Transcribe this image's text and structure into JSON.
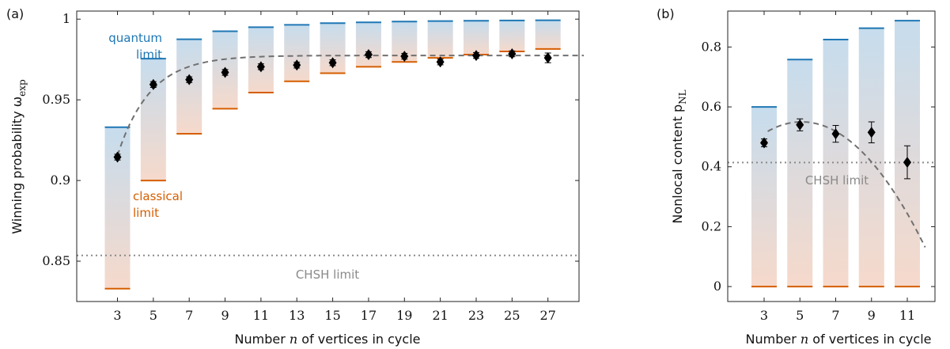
{
  "chart_data": [
    {
      "panel_label": "(a)",
      "type": "bar",
      "xlabel": "Number n of vertices in cycle",
      "ylabel": "Winning probability ω",
      "ylabel_sub": "exp",
      "ylim": [
        0.825,
        1.005
      ],
      "yticks": [
        0.85,
        0.9,
        0.95,
        1
      ],
      "ytick_labels": [
        "0.85",
        "0.9",
        "0.95",
        "1"
      ],
      "x": [
        3,
        5,
        7,
        9,
        11,
        13,
        15,
        17,
        19,
        21,
        23,
        25,
        27
      ],
      "xtick_labels": [
        "3",
        "5",
        "7",
        "9",
        "11",
        "13",
        "15",
        "17",
        "19",
        "21",
        "23",
        "25",
        "27"
      ],
      "quantum_limit": [
        0.933,
        0.9755,
        0.9875,
        0.9925,
        0.995,
        0.9965,
        0.9975,
        0.998,
        0.9985,
        0.9988,
        0.999,
        0.9992,
        0.9993
      ],
      "classical_limit": [
        0.833,
        0.9,
        0.929,
        0.9445,
        0.9545,
        0.9615,
        0.9665,
        0.9705,
        0.9735,
        0.976,
        0.978,
        0.98,
        0.9815
      ],
      "measured": [
        0.9145,
        0.9595,
        0.9625,
        0.967,
        0.9705,
        0.9715,
        0.973,
        0.978,
        0.977,
        0.9735,
        0.9775,
        0.9785,
        0.976
      ],
      "error": [
        0.0018,
        0.0018,
        0.0018,
        0.0018,
        0.0018,
        0.0018,
        0.0018,
        0.0018,
        0.0018,
        0.0018,
        0.0018,
        0.0018,
        0.003
      ],
      "fit_curve": {
        "asymptote": 0.9775,
        "amplitude": 0.062,
        "rate": 0.55,
        "x_start": 3,
        "x_end": 29
      },
      "chsh_limit": 0.8536,
      "annotations": {
        "quantum_limit_1": "quantum",
        "quantum_limit_2": "limit",
        "classical_limit_1": "classical",
        "classical_limit_2": "limit",
        "chsh": "CHSH limit"
      },
      "colors": {
        "quantum": "#1f77b4",
        "classical": "#d55e00",
        "bar_top": "#c6dced",
        "bar_bottom": "#f6d9cb",
        "fit": "#707070",
        "chsh": "#8a8a8a",
        "point": "#000000"
      }
    },
    {
      "panel_label": "(b)",
      "type": "bar",
      "xlabel": "Number n of vertices in cycle",
      "ylabel": "Nonlocal content p",
      "ylabel_sub": "NL",
      "ylim": [
        -0.05,
        0.92
      ],
      "yticks": [
        0,
        0.2,
        0.4,
        0.6,
        0.8
      ],
      "ytick_labels": [
        "0",
        "0.2",
        "0.4",
        "0.6",
        "0.8"
      ],
      "x": [
        3,
        5,
        7,
        9,
        11
      ],
      "xtick_labels": [
        "3",
        "5",
        "7",
        "9",
        "11"
      ],
      "quantum_limit": [
        0.6,
        0.758,
        0.825,
        0.863,
        0.888
      ],
      "classical_limit": [
        0,
        0,
        0,
        0,
        0
      ],
      "measured": [
        0.48,
        0.54,
        0.51,
        0.515,
        0.415
      ],
      "error": [
        0.013,
        0.02,
        0.028,
        0.035,
        0.055
      ],
      "fit_curve": {
        "peak": 0.55,
        "peak_x": 5.1,
        "curvature": 0.0088,
        "x_start": 3.2,
        "x_end": 12
      },
      "chsh_limit": 0.4142,
      "annotations": {
        "chsh": "CHSH limit"
      },
      "colors": {
        "quantum": "#1f77b4",
        "classical": "#d55e00",
        "bar_top": "#c6dced",
        "bar_bottom": "#f6d9cb",
        "fit": "#707070",
        "chsh": "#8a8a8a",
        "point": "#000000"
      }
    }
  ]
}
